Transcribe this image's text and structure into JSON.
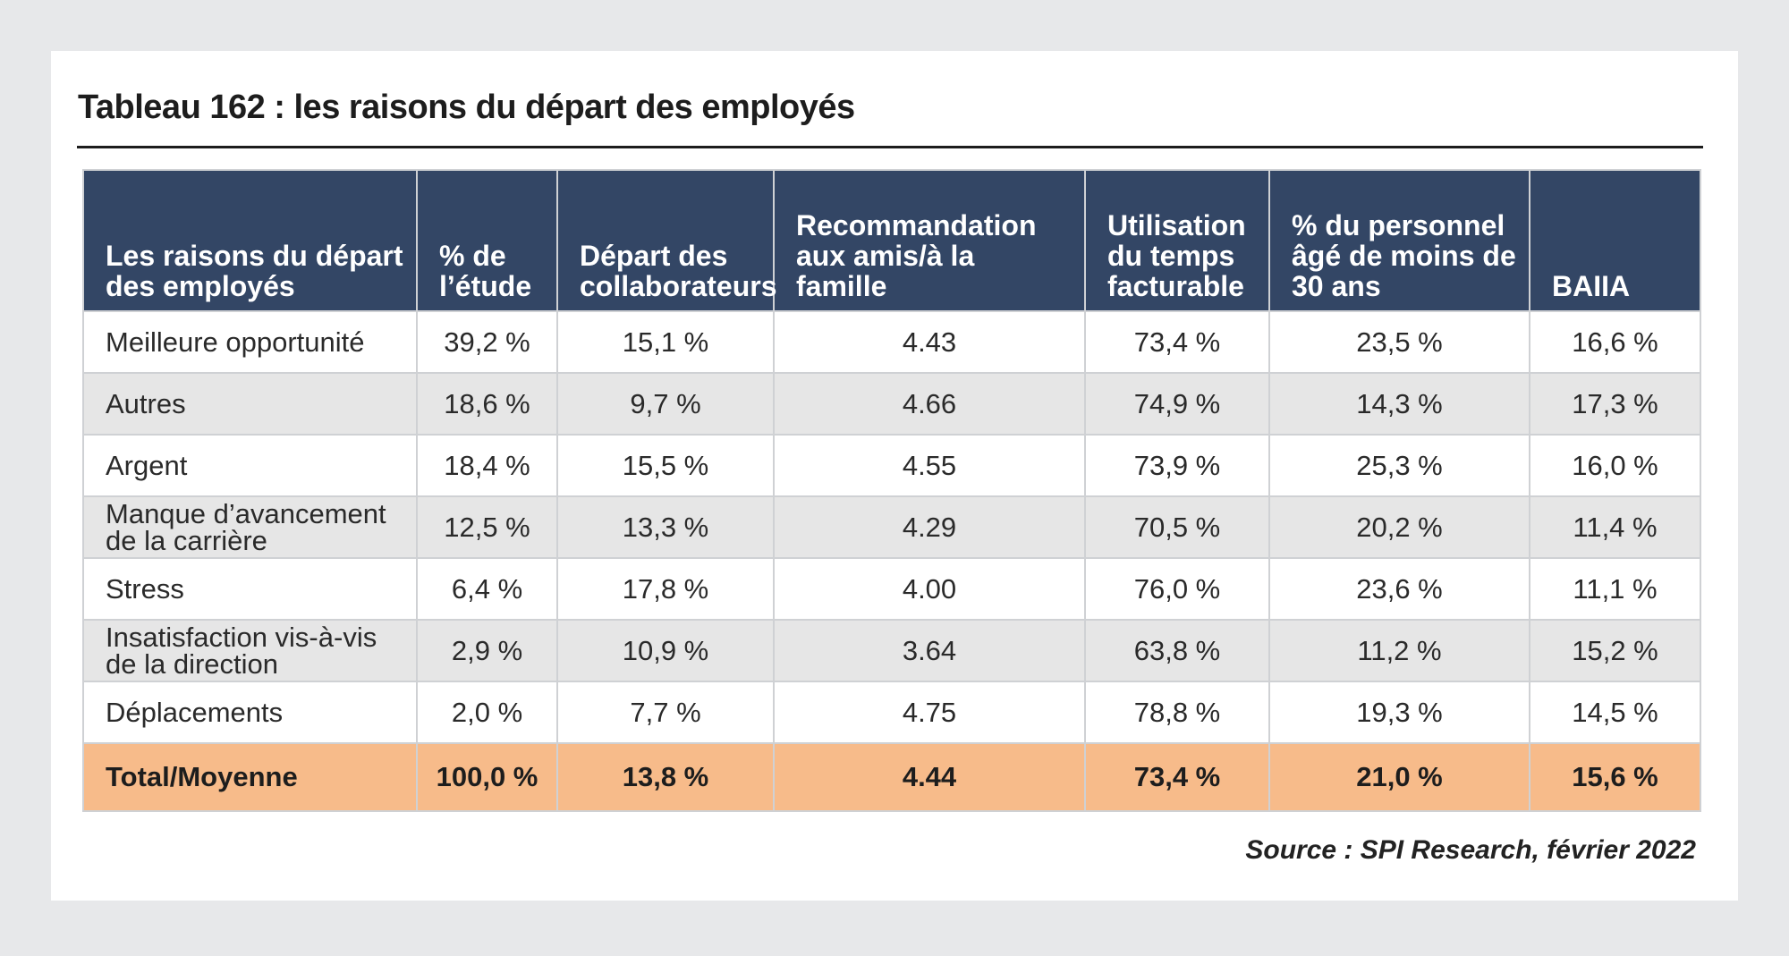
{
  "title": "Tableau 162 : les raisons du départ des employés",
  "table": {
    "headers": [
      "Les raisons du départ des employés",
      "% de l’étude",
      "Départ des collaborateurs",
      "Recommandation aux amis/à la famille",
      "Utilisation du temps facturable",
      "% du personnel âgé de moins de 30 ans",
      "BAIIA"
    ],
    "rows": [
      [
        "Meilleure opportunité",
        "39,2 %",
        "15,1 %",
        "4.43",
        "73,4 %",
        "23,5 %",
        "16,6 %"
      ],
      [
        "Autres",
        "18,6 %",
        "9,7 %",
        "4.66",
        "74,9 %",
        "14,3 %",
        "17,3 %"
      ],
      [
        "Argent",
        "18,4 %",
        "15,5 %",
        "4.55",
        "73,9 %",
        "25,3 %",
        "16,0 %"
      ],
      [
        "Manque d’avancement de la carrière",
        "12,5 %",
        "13,3 %",
        "4.29",
        "70,5 %",
        "20,2 %",
        "11,4 %"
      ],
      [
        "Stress",
        "6,4 %",
        "17,8 %",
        "4.00",
        "76,0 %",
        "23,6 %",
        "11,1 %"
      ],
      [
        "Insatisfaction vis-à-vis de la direction",
        "2,9 %",
        "10,9 %",
        "3.64",
        "63,8 %",
        "11,2 %",
        "15,2 %"
      ],
      [
        "Déplacements",
        "2,0 %",
        "7,7 %",
        "4.75",
        "78,8 %",
        "19,3 %",
        "14,5 %"
      ]
    ],
    "total": [
      "Total/Moyenne",
      "100,0 %",
      "13,8 %",
      "4.44",
      "73,4 %",
      "21,0 %",
      "15,6 %"
    ]
  },
  "source": "Source : SPI Research, février 2022",
  "colors": {
    "header_bg": "#334665",
    "total_bg": "#f7bb8a",
    "alt_row_bg": "#e6e6e6"
  }
}
